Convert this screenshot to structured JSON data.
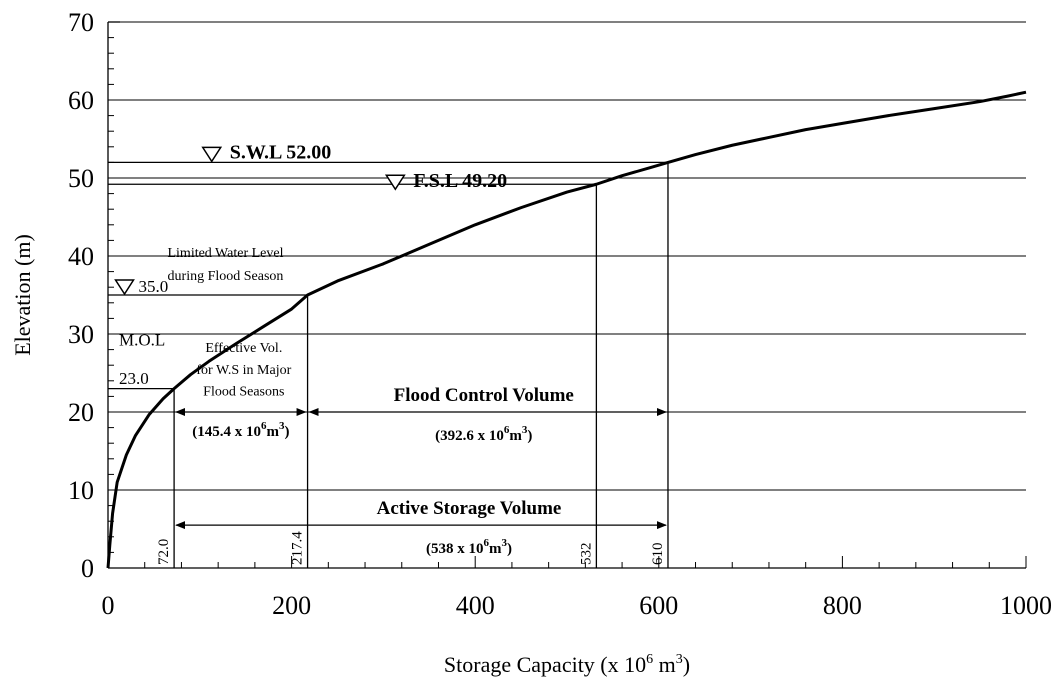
{
  "chart_data": {
    "type": "line",
    "xlabel": "Storage Capacity (x 10",
    "xlabel_sup": "6",
    "xlabel_unit": " m",
    "xlabel_unit_sup": "3",
    "xlabel_close": ")",
    "ylabel": "Elevation (m)",
    "xlim": [
      0,
      1000
    ],
    "ylim": [
      0,
      70
    ],
    "x_ticks": [
      "0",
      "200",
      "400",
      "600",
      "800",
      "1000"
    ],
    "y_ticks": [
      "0",
      "10",
      "20",
      "30",
      "40",
      "50",
      "60",
      "70"
    ],
    "grid": "horizontal",
    "series": [
      {
        "x": [
          0,
          2,
          5,
          10,
          20,
          30,
          45,
          60,
          72,
          90,
          110,
          140,
          170,
          200,
          217.4,
          250,
          300,
          350,
          400,
          450,
          500,
          532,
          560,
          590,
          610,
          640,
          680,
          720,
          760,
          800,
          850,
          900,
          950,
          980,
          1000
        ],
        "y": [
          0,
          3,
          7,
          11,
          14.5,
          17,
          19.7,
          21.7,
          23,
          24.8,
          26.5,
          28.8,
          31,
          33.2,
          35,
          36.8,
          39,
          41.5,
          44,
          46.2,
          48.2,
          49.2,
          50.3,
          51.3,
          52,
          53,
          54.2,
          55.2,
          56.2,
          57,
          58,
          58.9,
          59.8,
          60.5,
          61
        ]
      }
    ],
    "reference_levels": [
      {
        "y": 52.0,
        "x_end": 610,
        "label": "S.W.L 52.00",
        "label_x": 113
      },
      {
        "y": 49.2,
        "x_end": 532,
        "label": "F.S.L 49.20",
        "label_x": 313
      },
      {
        "y": 35.0,
        "x_end": 217.4,
        "label": "35.0",
        "label_x": 18
      },
      {
        "y": 23.0,
        "x_end": 72.0,
        "label": "23.0",
        "label_x": 18
      }
    ],
    "mol_label": "M.O.L",
    "limited_level_label": [
      "Limited Water Level",
      "during Flood Season"
    ],
    "vertical_markers": [
      {
        "x": 72.0,
        "y_top": 23.0,
        "label": "72.0"
      },
      {
        "x": 217.4,
        "y_top": 35.0,
        "label": "217.4"
      },
      {
        "x": 532,
        "y_top": 49.2,
        "label": "532"
      },
      {
        "x": 610,
        "y_top": 52.0,
        "label": "610"
      }
    ],
    "volumes": [
      {
        "name": "effective",
        "title_lines": [
          "Effective Vol.",
          "for W.S in Major",
          "Flood Seasons"
        ],
        "value_prefix": "(145.4 x 10",
        "value_sup": "6",
        "value_unit": "m",
        "value_unit_sup": "3",
        "value_suffix": ")",
        "x_from": 72.0,
        "x_to": 217.4,
        "y_arrow": 20
      },
      {
        "name": "flood-control",
        "title": "Flood Control Volume",
        "value_prefix": "(392.6 x 10",
        "value_sup": "6",
        "value_unit": "m",
        "value_unit_sup": "3",
        "value_suffix": ")",
        "x_from": 217.4,
        "x_to": 610,
        "y_arrow": 20
      },
      {
        "name": "active-storage",
        "title": "Active Storage Volume",
        "value_prefix": "(538 x 10",
        "value_sup": "6",
        "value_unit": "m",
        "value_unit_sup": "3",
        "value_suffix": ")",
        "x_from": 72.0,
        "x_to": 610,
        "y_arrow": 5.5
      }
    ]
  }
}
